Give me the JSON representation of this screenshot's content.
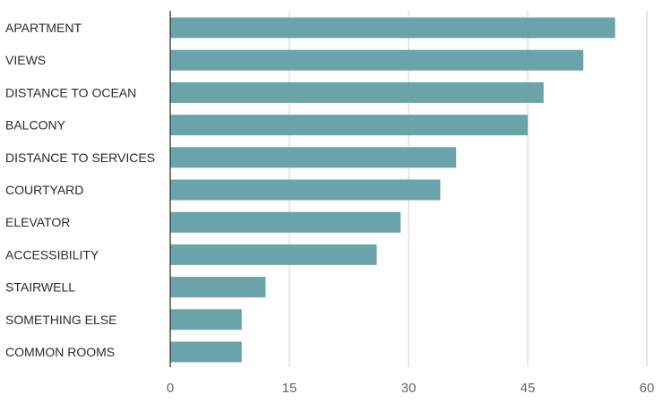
{
  "chart_data": {
    "type": "bar",
    "orientation": "horizontal",
    "categories": [
      "APARTMENT",
      "VIEWS",
      "DISTANCE TO OCEAN",
      "BALCONY",
      "DISTANCE TO SERVICES",
      "COURTYARD",
      "ELEVATOR",
      "ACCESSIBILITY",
      "STAIRWELL",
      "SOMETHING ELSE",
      "COMMON ROOMS"
    ],
    "values": [
      56,
      52,
      47,
      45,
      36,
      34,
      29,
      26,
      12,
      9,
      9
    ],
    "title": "",
    "xlabel": "",
    "ylabel": "",
    "xlim": [
      0,
      60
    ],
    "xticks": [
      "0",
      "15",
      "30",
      "45",
      "60"
    ],
    "grid": "vertical",
    "legend": "none",
    "bar_color": "#6ba3aa"
  }
}
